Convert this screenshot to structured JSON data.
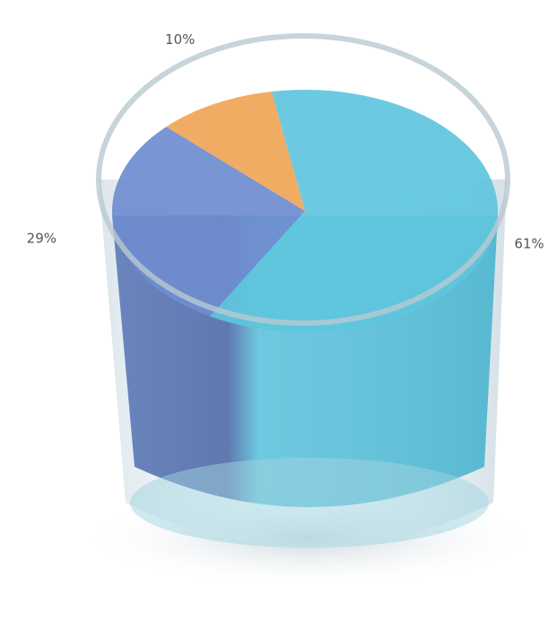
{
  "chart_data": {
    "type": "pie",
    "values": [
      61,
      29,
      10
    ],
    "value_labels": [
      "61%",
      "29%",
      "10%"
    ],
    "colors": [
      "#5ec6dd",
      "#6f8ccf",
      "#f0a556"
    ]
  }
}
